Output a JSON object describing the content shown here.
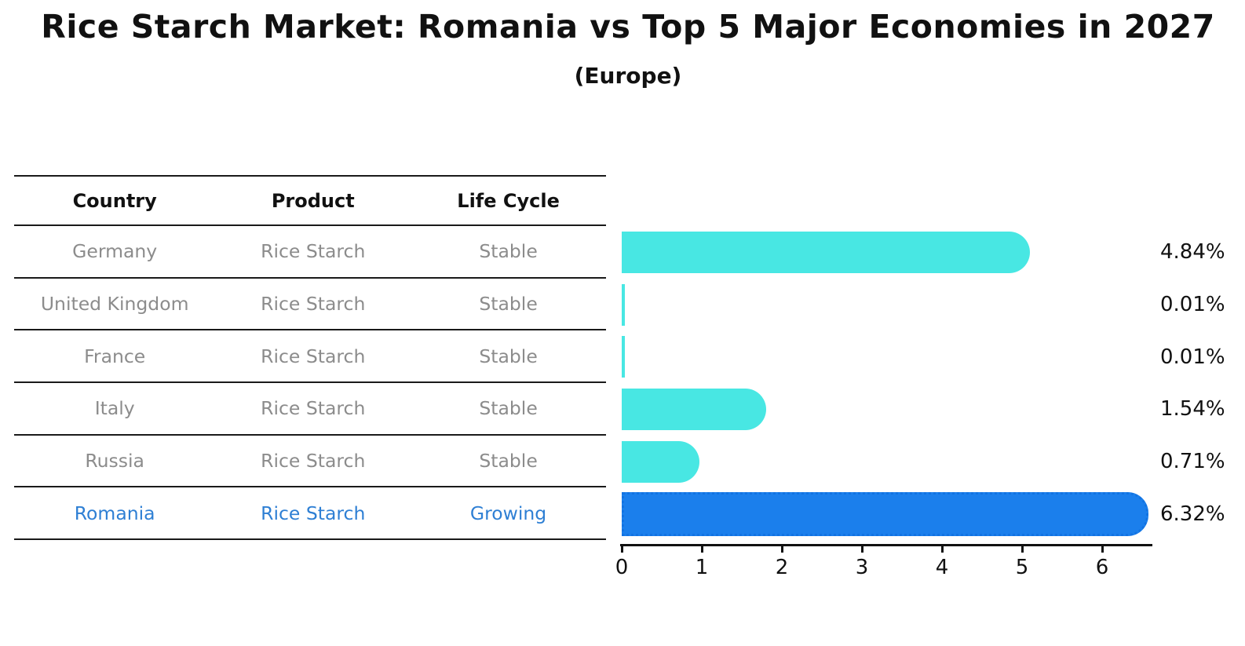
{
  "chart_data": {
    "type": "bar",
    "orientation": "horizontal",
    "title": "Rice Starch Market: Romania vs Top 5 Major Economies in 2027",
    "subtitle": "(Europe)",
    "categories": [
      "Germany",
      "United Kingdom",
      "France",
      "Italy",
      "Russia",
      "Romania"
    ],
    "values": [
      4.84,
      0.01,
      0.01,
      1.54,
      0.71,
      6.32
    ],
    "value_labels": [
      "4.84%",
      "0.01%",
      "0.01%",
      "1.54%",
      "0.71%",
      "6.32%"
    ],
    "highlighted_category": "Romania",
    "xlabel": "",
    "ylabel": "",
    "xlim": [
      0,
      6.62
    ],
    "xticks": [
      "0",
      "1",
      "2",
      "3",
      "4",
      "5",
      "6"
    ],
    "grid": false,
    "legend": "none"
  },
  "table": {
    "headers": [
      "Country",
      "Product",
      "Life Cycle"
    ],
    "rows": [
      {
        "country": "Germany",
        "product": "Rice Starch",
        "life_cycle": "Stable",
        "highlight": false
      },
      {
        "country": "United Kingdom",
        "product": "Rice Starch",
        "life_cycle": "Stable",
        "highlight": false
      },
      {
        "country": "France",
        "product": "Rice Starch",
        "life_cycle": "Stable",
        "highlight": false
      },
      {
        "country": "Italy",
        "product": "Rice Starch",
        "life_cycle": "Stable",
        "highlight": false
      },
      {
        "country": "Russia",
        "product": "Rice Starch",
        "life_cycle": "Stable",
        "highlight": false
      },
      {
        "country": "Romania",
        "product": "Rice Starch",
        "life_cycle": "Growing",
        "highlight": true
      }
    ]
  },
  "colors": {
    "bar_default": "#48E7E3",
    "bar_highlight": "#1B7FEC",
    "bar_highlight_border": "#1273E2",
    "highlight_text": "#2E7FD4",
    "row_text": "#8C8C8C",
    "axis_and_lines": "#111111"
  }
}
